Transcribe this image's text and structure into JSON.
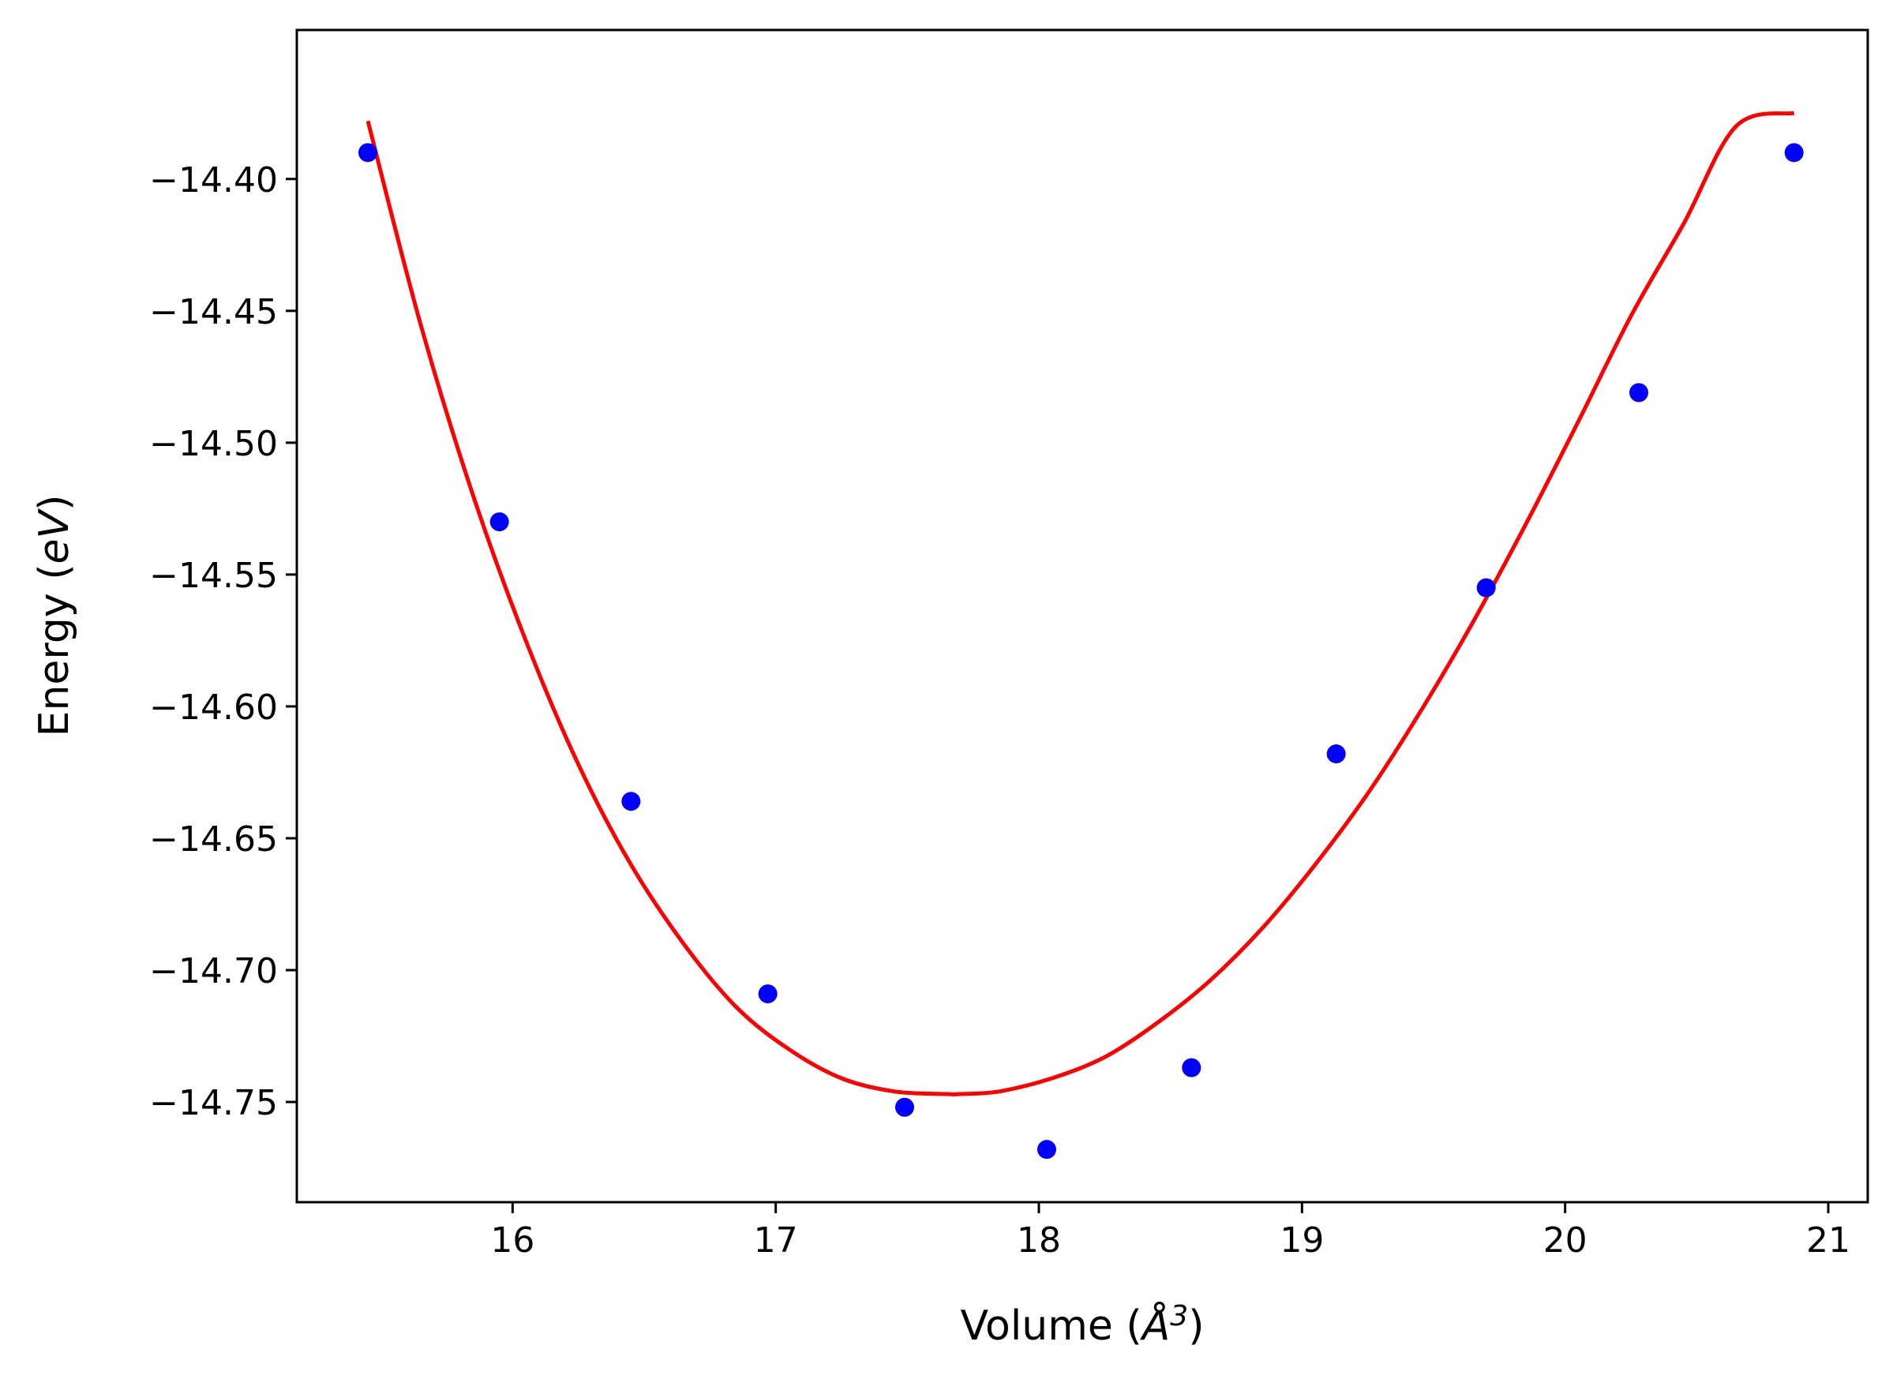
{
  "chart_data": {
    "type": "scatter",
    "title": "",
    "xlabel": "Volume (Å³)",
    "ylabel": "Energy (eV)",
    "xlabel_parts": {
      "prefix": "Volume (",
      "symbol": "Å",
      "sup": "3",
      "suffix": ")"
    },
    "ylabel_parts": {
      "prefix": "Energy (",
      "italic": "eV",
      "suffix": ")"
    },
    "xlim": [
      15.18,
      21.15
    ],
    "ylim": [
      -14.788,
      -14.3435
    ],
    "xticks": [
      16,
      17,
      18,
      19,
      20,
      21
    ],
    "xtick_labels": [
      "16",
      "17",
      "18",
      "19",
      "20",
      "21"
    ],
    "yticks": [
      -14.4,
      -14.45,
      -14.5,
      -14.55,
      -14.6,
      -14.65,
      -14.7,
      -14.75
    ],
    "ytick_labels": [
      "−14.40",
      "−14.45",
      "−14.50",
      "−14.55",
      "−14.60",
      "−14.65",
      "−14.70",
      "−14.75"
    ],
    "grid": false,
    "series": [
      {
        "name": "data",
        "kind": "scatter",
        "color": "#0000ff",
        "x": [
          15.45,
          15.95,
          16.45,
          16.97,
          17.49,
          18.03,
          18.58,
          19.13,
          19.7,
          20.28,
          20.87
        ],
        "y": [
          -14.39,
          -14.53,
          -14.636,
          -14.709,
          -14.752,
          -14.768,
          -14.737,
          -14.618,
          -14.555,
          -14.481,
          -14.39
        ]
      },
      {
        "name": "fit",
        "kind": "line",
        "color": "#ff0000",
        "x": [
          15.45,
          15.65,
          15.85,
          16.05,
          16.25,
          16.45,
          16.65,
          16.85,
          17.05,
          17.25,
          17.45,
          17.65,
          17.7,
          17.85,
          18.05,
          18.25,
          18.45,
          18.65,
          18.85,
          19.05,
          19.25,
          19.45,
          19.65,
          19.85,
          20.05,
          20.25,
          20.45,
          20.65,
          20.87
        ],
        "y": [
          -14.378,
          -14.455,
          -14.52,
          -14.575,
          -14.622,
          -14.66,
          -14.69,
          -14.714,
          -14.73,
          -14.741,
          -14.746,
          -14.747,
          -14.747,
          -14.746,
          -14.741,
          -14.733,
          -14.72,
          -14.704,
          -14.684,
          -14.66,
          -14.633,
          -14.602,
          -14.568,
          -14.531,
          -14.492,
          -14.452,
          -14.417,
          -14.38,
          -14.375
        ]
      }
    ]
  }
}
